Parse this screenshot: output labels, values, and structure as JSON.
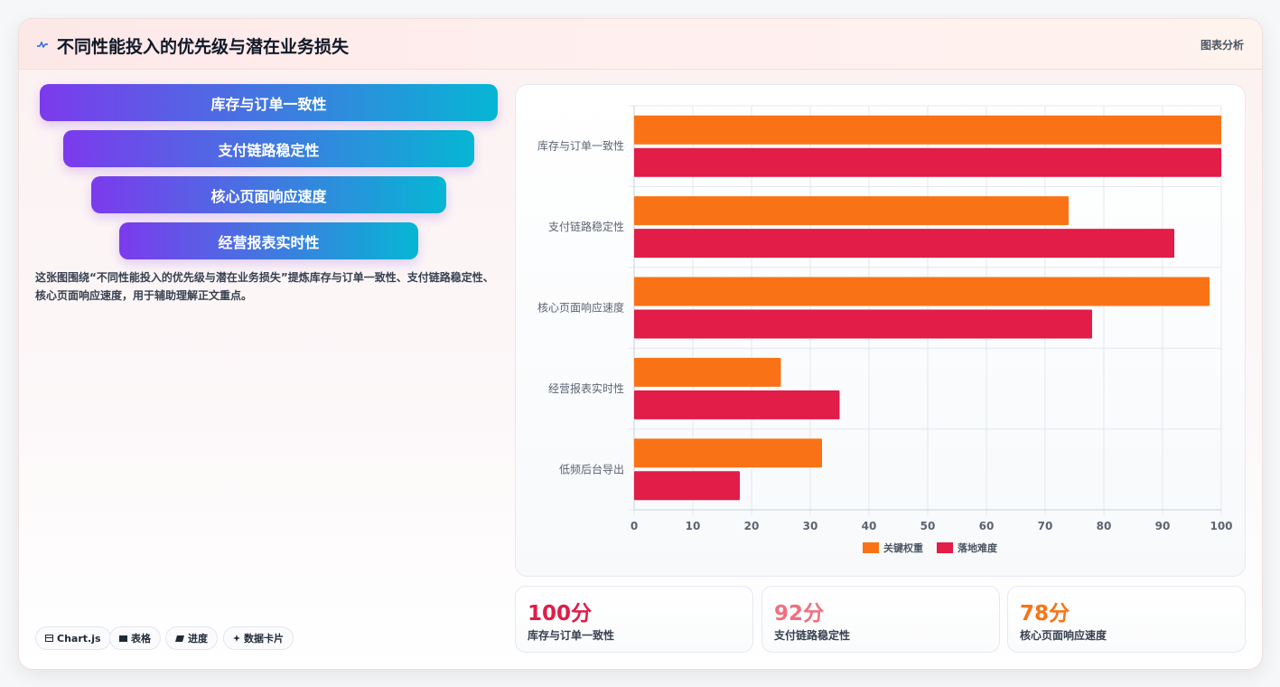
{
  "header": {
    "title": "不同性能投入的优先级与潜在业务损失",
    "tag": "图表分析"
  },
  "pills": [
    {
      "label": "库存与订单一致性"
    },
    {
      "label": "支付链路稳定性"
    },
    {
      "label": "核心页面响应速度"
    },
    {
      "label": "经营报表实时性"
    }
  ],
  "description": "这张图围绕“不同性能投入的优先级与潜在业务损失”提炼库存与订单一致性、支付链路稳定性、核心页面响应速度，用于辅助理解正文重点。",
  "chips": [
    {
      "icon": "chart-icon",
      "label": "Chart.js"
    },
    {
      "icon": "table-icon",
      "label": "表格"
    },
    {
      "icon": "progress-icon",
      "label": "进度"
    },
    {
      "icon": "sparkle-icon",
      "label": "数据卡片"
    }
  ],
  "chart_data": {
    "type": "bar",
    "orientation": "horizontal",
    "categories": [
      "库存与订单一致性",
      "支付链路稳定性",
      "核心页面响应速度",
      "经营报表实时性",
      "低频后台导出"
    ],
    "series": [
      {
        "name": "关键权重",
        "color": "#f97316",
        "values": [
          100,
          74,
          98,
          25,
          32
        ]
      },
      {
        "name": "落地难度",
        "color": "#e11d48",
        "values": [
          100,
          92,
          78,
          35,
          18
        ]
      }
    ],
    "xlim": [
      0,
      100
    ],
    "xticks": [
      "0",
      "10",
      "20",
      "30",
      "40",
      "50",
      "60",
      "70",
      "80",
      "90",
      "100"
    ],
    "grid": true,
    "legend": "bottom"
  },
  "stats": [
    {
      "value": "100分",
      "label": "库存与订单一致性",
      "color": "#e11d48"
    },
    {
      "value": "92分",
      "label": "支付链路稳定性",
      "color": "#f0707f"
    },
    {
      "value": "78分",
      "label": "核心页面响应速度",
      "color": "#f97316"
    }
  ]
}
